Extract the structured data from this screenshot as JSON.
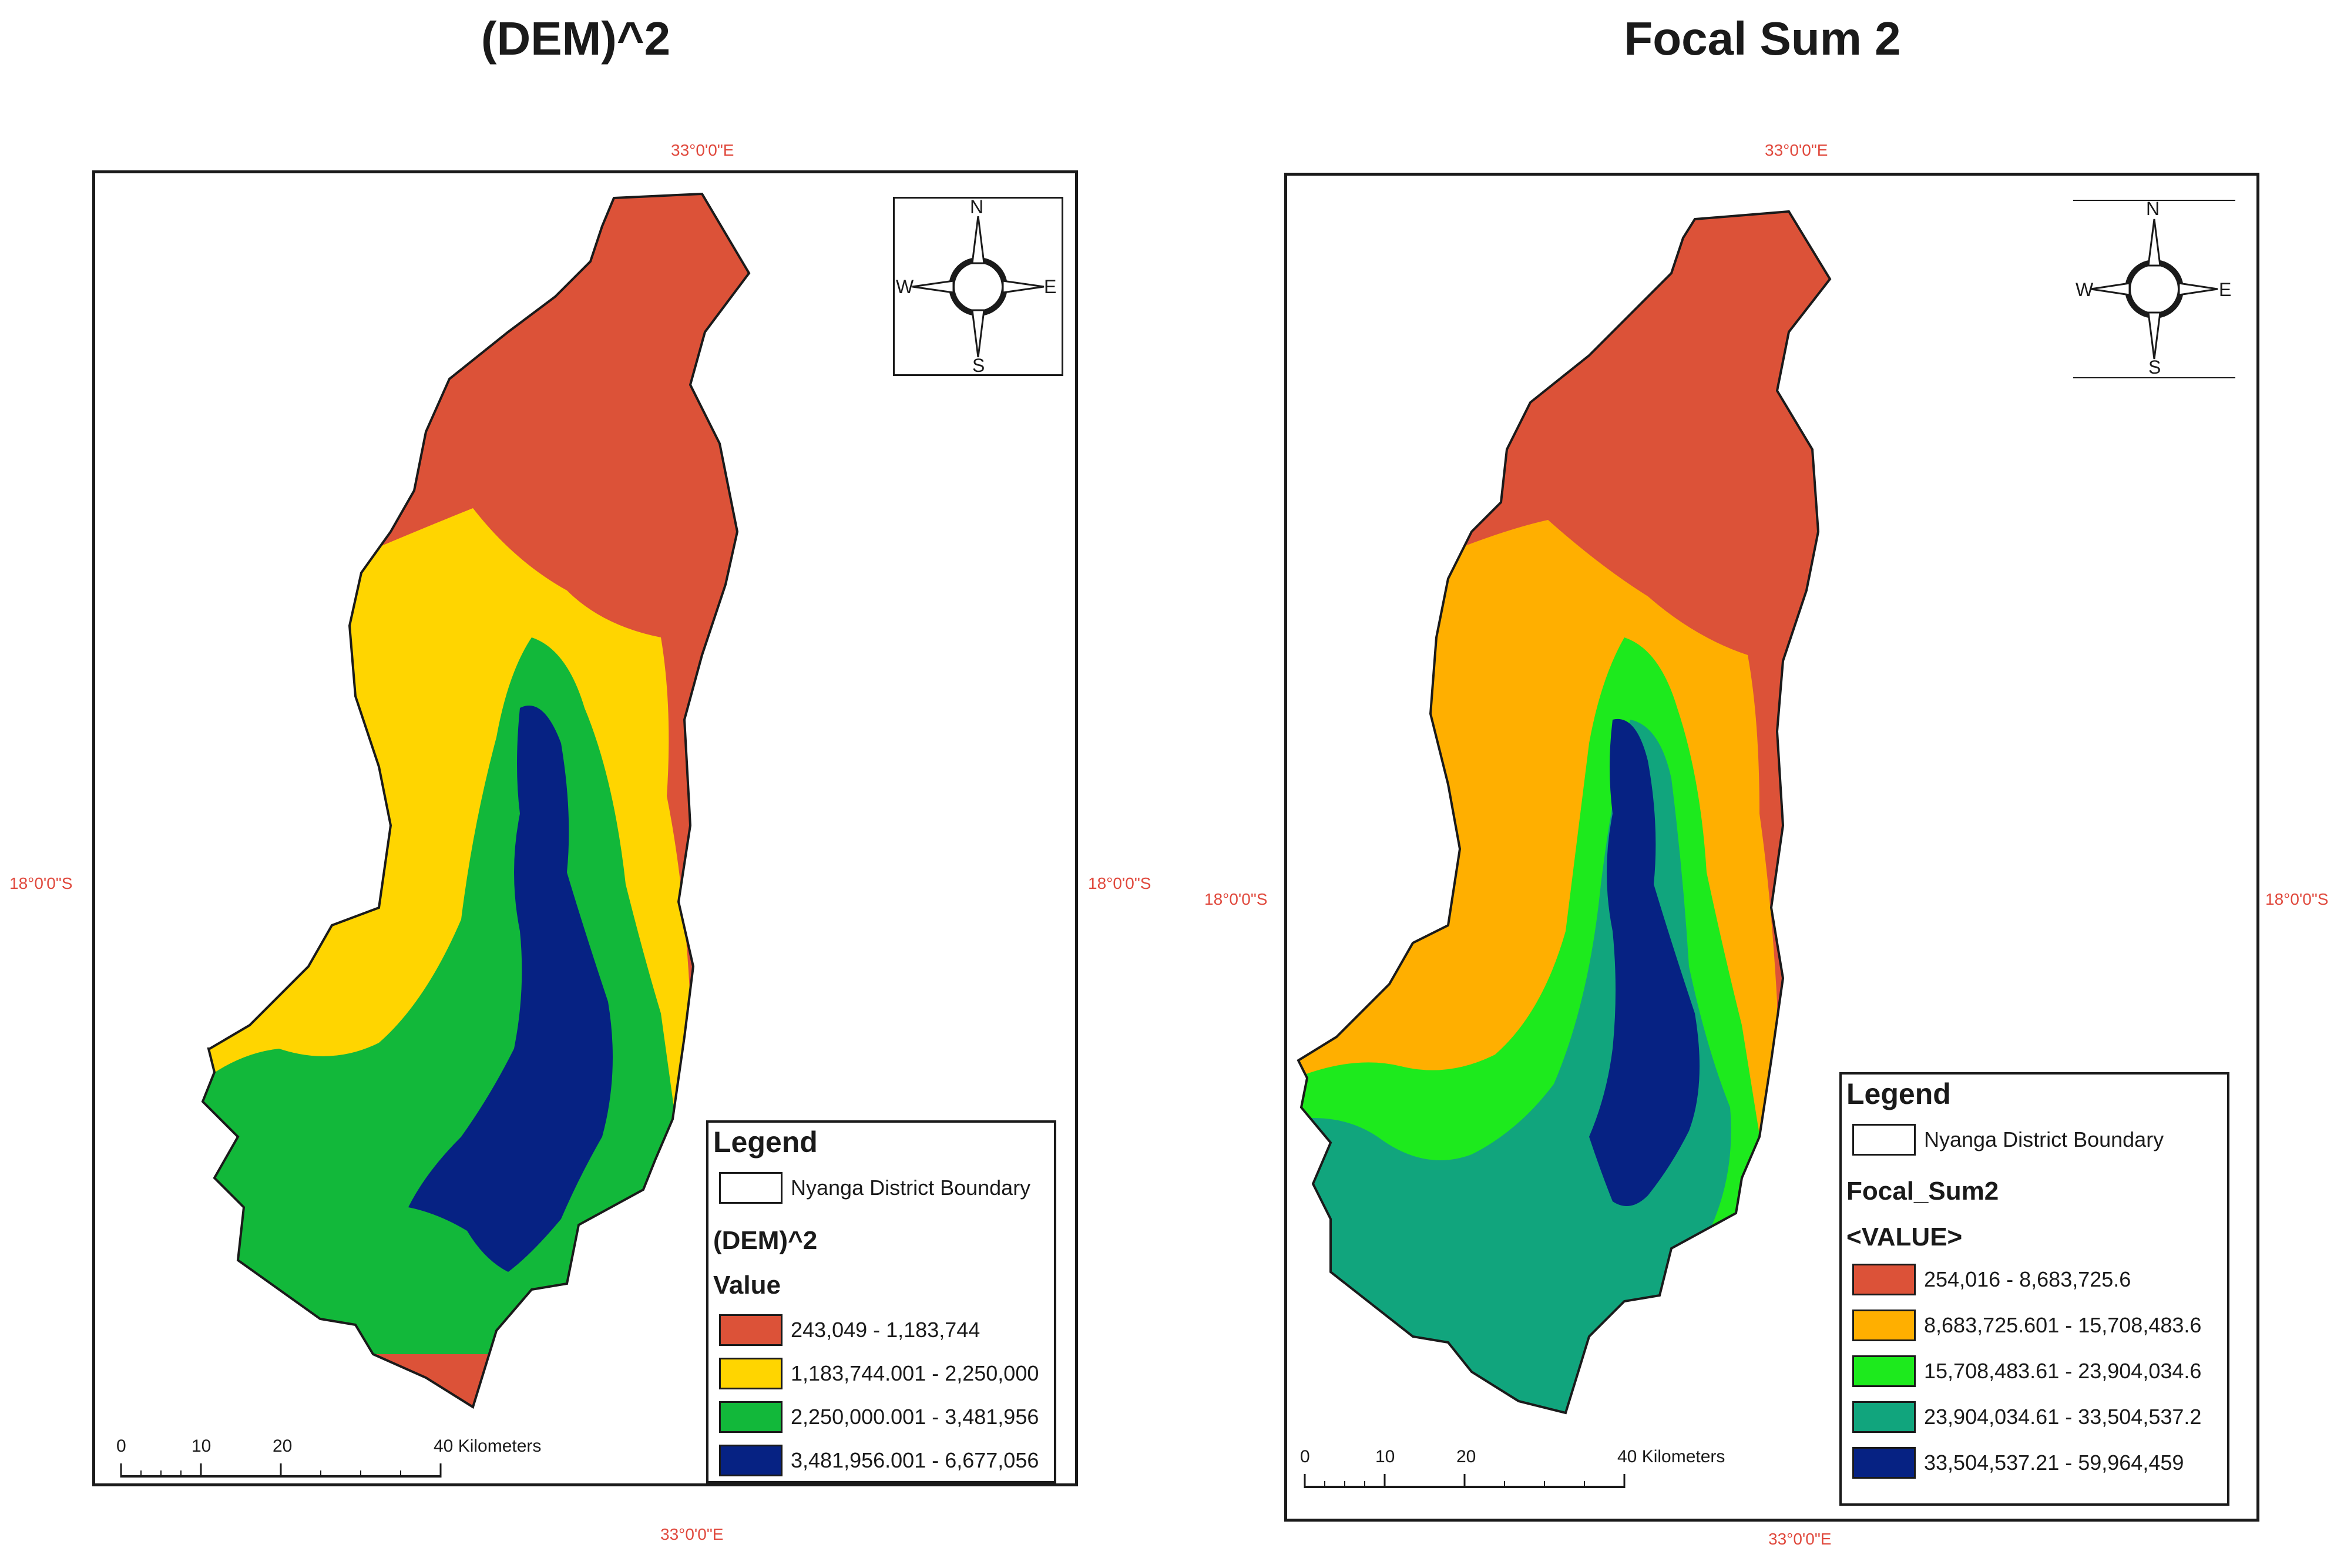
{
  "panels": [
    {
      "title": "(DEM)^2",
      "coords": {
        "top": "33°0'0\"E",
        "bottom": "33°0'0\"E",
        "left": "18°0'0\"S",
        "right": "18°0'0\"S"
      },
      "compass": {
        "n": "N",
        "s": "S",
        "e": "E",
        "w": "W"
      },
      "legend": {
        "title": "Legend",
        "boundary_label": "Nyanga District Boundary",
        "layer_name": "(DEM)^2",
        "field_name": "Value",
        "classes": [
          {
            "label": "243,049 - 1,183,744",
            "color": "#dc5238"
          },
          {
            "label": "1,183,744.001 - 2,250,000",
            "color": "#ffd500"
          },
          {
            "label": "2,250,000.001 - 3,481,956",
            "color": "#12b83a"
          },
          {
            "label": "3,481,956.001 - 6,677,056",
            "color": "#062283"
          }
        ]
      },
      "scale": {
        "ticks": [
          "0",
          "10",
          "20",
          "40 Kilometers"
        ]
      }
    },
    {
      "title": "Focal Sum 2",
      "coords": {
        "top": "33°0'0\"E",
        "bottom": "33°0'0\"E",
        "left": "18°0'0\"S",
        "right": "18°0'0\"S"
      },
      "compass": {
        "n": "N",
        "s": "S",
        "e": "E",
        "w": "W"
      },
      "legend": {
        "title": "Legend",
        "boundary_label": "Nyanga District Boundary",
        "layer_name": "Focal_Sum2",
        "field_name": "<VALUE>",
        "classes": [
          {
            "label": "254,016 - 8,683,725.6",
            "color": "#dc5238"
          },
          {
            "label": "8,683,725.601 - 15,708,483.6",
            "color": "#ffaf00"
          },
          {
            "label": "15,708,483.61 - 23,904,034.6",
            "color": "#1dea1d"
          },
          {
            "label": "23,904,034.61 - 33,504,537.2",
            "color": "#11a57d"
          },
          {
            "label": "33,504,537.21 - 59,964,459",
            "color": "#062283"
          }
        ]
      },
      "scale": {
        "ticks": [
          "0",
          "10",
          "20",
          "40 Kilometers"
        ]
      }
    }
  ]
}
